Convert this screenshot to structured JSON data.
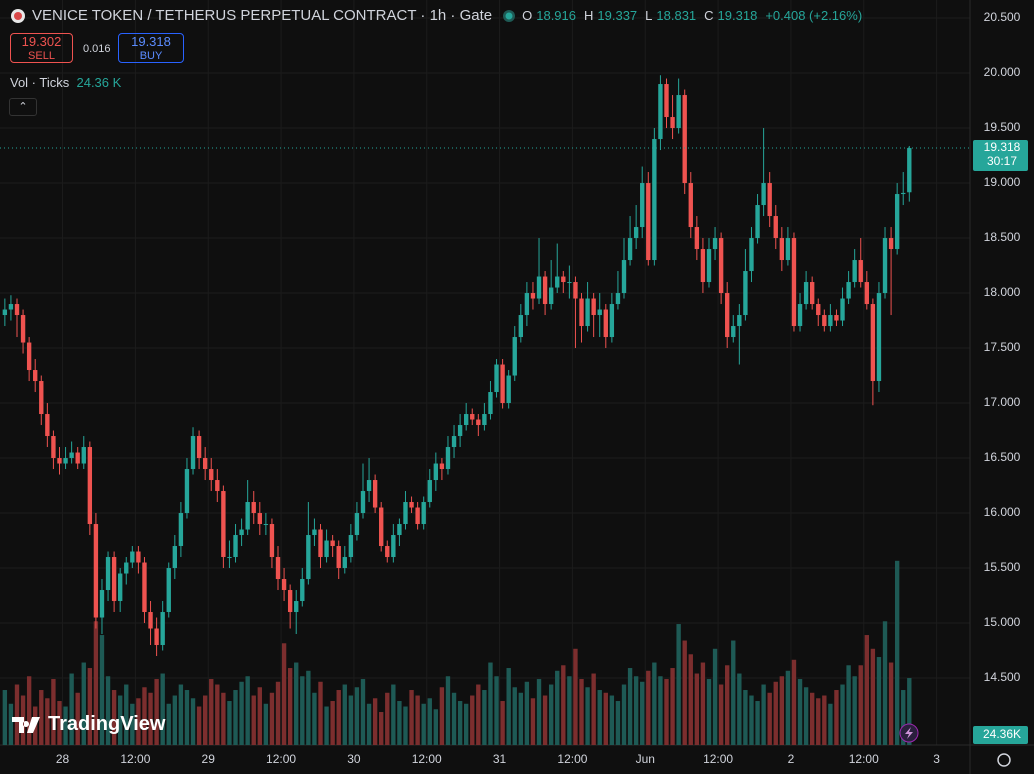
{
  "chart_data": {
    "type": "candlestick",
    "title": "VENICE TOKEN / TETHERUS PERPETUAL CONTRACT · 1h · Gate",
    "legend_items": [
      {
        "label": "O",
        "value": 18.916
      },
      {
        "label": "H",
        "value": 19.337
      },
      {
        "label": "L",
        "value": 18.831
      },
      {
        "label": "C",
        "value": 19.318
      }
    ],
    "change": "+0.408 (+2.16%)",
    "sell": {
      "price": 19.302,
      "label": "SELL"
    },
    "spread": 0.016,
    "buy": {
      "price": 19.318,
      "label": "BUY"
    },
    "volume_legend": {
      "label": "Vol · Ticks",
      "value": "24.36 K"
    },
    "last_price": 19.318,
    "countdown": "30:17",
    "volume_label": "24.36K",
    "brand": "TradingView",
    "colors": {
      "up": "#26a69a",
      "down": "#ef5350",
      "up_volume": "#1e5a55",
      "down_volume": "#7c2e2e"
    },
    "grid": true,
    "xlim": [
      -0.8,
      159
    ],
    "ylim": [
      13.891,
      20.664
    ],
    "vlim": [
      0,
      271
    ],
    "yticks": [
      {
        "value": 14.5,
        "label": "14.500"
      },
      {
        "value": 15,
        "label": "15.000"
      },
      {
        "value": 15.5,
        "label": "15.500"
      },
      {
        "value": 16,
        "label": "16.000"
      },
      {
        "value": 16.5,
        "label": "16.500"
      },
      {
        "value": 17,
        "label": "17.000"
      },
      {
        "value": 17.5,
        "label": "17.500"
      },
      {
        "value": 18,
        "label": "18.000"
      },
      {
        "value": 18.5,
        "label": "18.500"
      },
      {
        "value": 19,
        "label": "19.000"
      },
      {
        "value": 19.5,
        "label": "19.500"
      },
      {
        "value": 20,
        "label": "20.000"
      },
      {
        "value": 20.5,
        "label": "20.500"
      }
    ],
    "xticks": [
      {
        "value": 9.5,
        "label": "28"
      },
      {
        "value": 21.5,
        "label": "12:00"
      },
      {
        "value": 33.5,
        "label": "29"
      },
      {
        "value": 45.5,
        "label": "12:00"
      },
      {
        "value": 57.5,
        "label": "30"
      },
      {
        "value": 69.5,
        "label": "12:00"
      },
      {
        "value": 81.5,
        "label": "31"
      },
      {
        "value": 93.5,
        "label": "12:00"
      },
      {
        "value": 105.5,
        "label": "Jun"
      },
      {
        "value": 117.5,
        "label": "12:00"
      },
      {
        "value": 129.5,
        "label": "2"
      },
      {
        "value": 141.5,
        "label": "12:00"
      },
      {
        "value": 153.5,
        "label": "3"
      }
    ],
    "candles": [
      [
        17.8,
        17.95,
        17.7,
        17.85
      ],
      [
        17.85,
        17.98,
        17.75,
        17.9
      ],
      [
        17.9,
        17.95,
        17.6,
        17.8
      ],
      [
        17.8,
        17.85,
        17.45,
        17.55
      ],
      [
        17.55,
        17.6,
        17.2,
        17.3
      ],
      [
        17.3,
        17.4,
        17.1,
        17.2
      ],
      [
        17.2,
        17.25,
        16.8,
        16.9
      ],
      [
        16.9,
        17.0,
        16.6,
        16.7
      ],
      [
        16.7,
        16.75,
        16.4,
        16.5
      ],
      [
        16.5,
        16.6,
        16.35,
        16.45
      ],
      [
        16.45,
        16.6,
        16.4,
        16.5
      ],
      [
        16.5,
        16.65,
        16.45,
        16.55
      ],
      [
        16.55,
        16.6,
        16.4,
        16.45
      ],
      [
        16.45,
        16.7,
        16.4,
        16.6
      ],
      [
        16.6,
        16.65,
        15.8,
        15.9
      ],
      [
        15.9,
        16.0,
        14.95,
        15.05
      ],
      [
        15.05,
        15.4,
        14.9,
        15.3
      ],
      [
        15.3,
        15.65,
        15.2,
        15.6
      ],
      [
        15.6,
        15.65,
        15.1,
        15.2
      ],
      [
        15.2,
        15.5,
        15.1,
        15.45
      ],
      [
        15.45,
        15.6,
        15.35,
        15.55
      ],
      [
        15.55,
        15.7,
        15.5,
        15.65
      ],
      [
        15.65,
        15.7,
        15.45,
        15.55
      ],
      [
        15.55,
        15.6,
        15.0,
        15.1
      ],
      [
        15.1,
        15.2,
        14.8,
        14.95
      ],
      [
        14.95,
        15.05,
        14.7,
        14.8
      ],
      [
        14.8,
        15.2,
        14.75,
        15.1
      ],
      [
        15.1,
        15.55,
        15.05,
        15.5
      ],
      [
        15.5,
        15.8,
        15.4,
        15.7
      ],
      [
        15.7,
        16.1,
        15.6,
        16.0
      ],
      [
        16.0,
        16.5,
        15.95,
        16.4
      ],
      [
        16.4,
        16.78,
        16.35,
        16.7
      ],
      [
        16.7,
        16.75,
        16.4,
        16.5
      ],
      [
        16.5,
        16.6,
        16.3,
        16.4
      ],
      [
        16.4,
        16.5,
        16.2,
        16.3
      ],
      [
        16.3,
        16.4,
        16.1,
        16.2
      ],
      [
        16.2,
        16.25,
        15.5,
        15.6
      ],
      [
        15.6,
        15.75,
        15.5,
        15.6
      ],
      [
        15.6,
        15.9,
        15.55,
        15.8
      ],
      [
        15.8,
        15.95,
        15.7,
        15.85
      ],
      [
        15.85,
        16.3,
        15.8,
        16.1
      ],
      [
        16.1,
        16.2,
        15.9,
        16.0
      ],
      [
        16.0,
        16.1,
        15.8,
        15.9
      ],
      [
        15.9,
        16.0,
        15.8,
        15.9
      ],
      [
        15.9,
        15.95,
        15.5,
        15.6
      ],
      [
        15.6,
        15.7,
        15.3,
        15.4
      ],
      [
        15.4,
        15.5,
        15.2,
        15.3
      ],
      [
        15.3,
        15.35,
        14.95,
        15.1
      ],
      [
        15.1,
        15.3,
        14.9,
        15.2
      ],
      [
        15.2,
        15.5,
        15.15,
        15.4
      ],
      [
        15.4,
        16.1,
        15.35,
        15.8
      ],
      [
        15.8,
        15.95,
        15.7,
        15.85
      ],
      [
        15.85,
        15.9,
        15.5,
        15.6
      ],
      [
        15.6,
        15.85,
        15.55,
        15.75
      ],
      [
        15.75,
        15.8,
        15.6,
        15.7
      ],
      [
        15.7,
        15.75,
        15.4,
        15.5
      ],
      [
        15.5,
        15.7,
        15.45,
        15.6
      ],
      [
        15.6,
        15.9,
        15.55,
        15.8
      ],
      [
        15.8,
        16.1,
        15.75,
        16.0
      ],
      [
        16.0,
        16.45,
        15.95,
        16.2
      ],
      [
        16.2,
        16.5,
        16.1,
        16.3
      ],
      [
        16.3,
        16.35,
        16.0,
        16.05
      ],
      [
        16.05,
        16.1,
        15.65,
        15.7
      ],
      [
        15.7,
        15.75,
        15.55,
        15.6
      ],
      [
        15.6,
        15.9,
        15.55,
        15.8
      ],
      [
        15.8,
        15.95,
        15.7,
        15.9
      ],
      [
        15.9,
        16.2,
        15.85,
        16.1
      ],
      [
        16.1,
        16.15,
        16.0,
        16.05
      ],
      [
        16.05,
        16.1,
        15.85,
        15.9
      ],
      [
        15.9,
        16.15,
        15.85,
        16.1
      ],
      [
        16.1,
        16.4,
        16.05,
        16.3
      ],
      [
        16.3,
        16.55,
        16.2,
        16.45
      ],
      [
        16.45,
        16.5,
        16.3,
        16.4
      ],
      [
        16.4,
        16.7,
        16.35,
        16.6
      ],
      [
        16.6,
        16.8,
        16.5,
        16.7
      ],
      [
        16.7,
        16.9,
        16.6,
        16.8
      ],
      [
        16.8,
        17.0,
        16.75,
        16.9
      ],
      [
        16.9,
        16.95,
        16.8,
        16.85
      ],
      [
        16.85,
        16.9,
        16.7,
        16.8
      ],
      [
        16.8,
        17.0,
        16.75,
        16.9
      ],
      [
        16.9,
        17.2,
        16.85,
        17.1
      ],
      [
        17.1,
        17.4,
        17.05,
        17.35
      ],
      [
        17.35,
        17.4,
        16.95,
        17.0
      ],
      [
        17.0,
        17.3,
        16.95,
        17.25
      ],
      [
        17.25,
        17.7,
        17.2,
        17.6
      ],
      [
        17.6,
        17.9,
        17.55,
        17.8
      ],
      [
        17.8,
        18.1,
        17.7,
        18.0
      ],
      [
        18.0,
        18.1,
        17.85,
        17.95
      ],
      [
        17.95,
        18.5,
        17.9,
        18.15
      ],
      [
        18.15,
        18.2,
        17.8,
        17.9
      ],
      [
        17.9,
        18.3,
        17.85,
        18.05
      ],
      [
        18.05,
        18.45,
        18.0,
        18.15
      ],
      [
        18.15,
        18.2,
        18.0,
        18.1
      ],
      [
        18.1,
        18.25,
        17.95,
        18.1
      ],
      [
        18.1,
        18.15,
        17.5,
        17.95
      ],
      [
        17.95,
        18.0,
        17.55,
        17.7
      ],
      [
        17.7,
        18.1,
        17.65,
        17.95
      ],
      [
        17.95,
        18.0,
        17.6,
        17.8
      ],
      [
        17.8,
        18.0,
        17.6,
        17.85
      ],
      [
        17.85,
        17.9,
        17.5,
        17.6
      ],
      [
        17.6,
        18.0,
        17.55,
        17.9
      ],
      [
        17.9,
        18.2,
        17.85,
        18.0
      ],
      [
        18.0,
        18.5,
        17.95,
        18.3
      ],
      [
        18.3,
        18.7,
        18.25,
        18.5
      ],
      [
        18.5,
        18.8,
        18.4,
        18.6
      ],
      [
        18.6,
        19.15,
        18.5,
        19.0
      ],
      [
        19.0,
        19.1,
        18.25,
        18.3
      ],
      [
        18.3,
        19.5,
        18.25,
        19.4
      ],
      [
        19.4,
        19.98,
        19.3,
        19.9
      ],
      [
        19.9,
        19.95,
        19.5,
        19.6
      ],
      [
        19.6,
        19.8,
        19.4,
        19.5
      ],
      [
        19.5,
        19.95,
        19.45,
        19.8
      ],
      [
        19.8,
        19.85,
        18.9,
        19.0
      ],
      [
        19.0,
        19.1,
        18.5,
        18.6
      ],
      [
        18.6,
        18.7,
        18.3,
        18.4
      ],
      [
        18.4,
        18.5,
        18.0,
        18.1
      ],
      [
        18.1,
        18.5,
        18.05,
        18.4
      ],
      [
        18.4,
        18.6,
        18.3,
        18.5
      ],
      [
        18.5,
        18.55,
        17.9,
        18.0
      ],
      [
        18.0,
        18.1,
        17.5,
        17.6
      ],
      [
        17.6,
        17.8,
        17.55,
        17.7
      ],
      [
        17.7,
        17.9,
        17.35,
        17.8
      ],
      [
        17.8,
        18.4,
        17.75,
        18.2
      ],
      [
        18.2,
        18.6,
        18.1,
        18.5
      ],
      [
        18.5,
        18.9,
        18.45,
        18.8
      ],
      [
        18.8,
        19.5,
        18.7,
        19.0
      ],
      [
        19.0,
        19.1,
        18.6,
        18.7
      ],
      [
        18.7,
        18.8,
        18.4,
        18.5
      ],
      [
        18.5,
        18.6,
        18.2,
        18.3
      ],
      [
        18.3,
        18.6,
        18.25,
        18.5
      ],
      [
        18.5,
        18.55,
        17.65,
        17.7
      ],
      [
        17.7,
        18.0,
        17.65,
        17.9
      ],
      [
        17.9,
        18.2,
        17.85,
        18.1
      ],
      [
        18.1,
        18.15,
        17.85,
        17.9
      ],
      [
        17.9,
        17.95,
        17.7,
        17.8
      ],
      [
        17.8,
        17.85,
        17.65,
        17.7
      ],
      [
        17.7,
        17.9,
        17.65,
        17.8
      ],
      [
        17.8,
        17.85,
        17.7,
        17.75
      ],
      [
        17.75,
        18.05,
        17.7,
        17.95
      ],
      [
        17.95,
        18.2,
        17.9,
        18.1
      ],
      [
        18.1,
        18.4,
        18.05,
        18.3
      ],
      [
        18.3,
        18.5,
        18.05,
        18.1
      ],
      [
        18.1,
        18.2,
        17.85,
        17.9
      ],
      [
        17.9,
        17.95,
        16.98,
        17.2
      ],
      [
        17.2,
        18.1,
        17.1,
        18.0
      ],
      [
        18.0,
        18.6,
        17.95,
        18.5
      ],
      [
        18.5,
        18.6,
        17.8,
        18.4
      ],
      [
        18.4,
        19.0,
        18.35,
        18.9
      ],
      [
        18.9,
        19.1,
        18.8,
        18.91
      ],
      [
        18.916,
        19.337,
        18.831,
        19.318
      ]
    ],
    "volumes": [
      20,
      15,
      22,
      18,
      25,
      14,
      20,
      17,
      24,
      16,
      14,
      26,
      19,
      30,
      28,
      45,
      40,
      25,
      20,
      18,
      22,
      15,
      17,
      21,
      19,
      24,
      26,
      15,
      18,
      22,
      20,
      17,
      14,
      18,
      24,
      22,
      19,
      16,
      20,
      23,
      25,
      18,
      21,
      15,
      19,
      23,
      37,
      28,
      30,
      25,
      27,
      19,
      23,
      14,
      16,
      20,
      22,
      18,
      21,
      24,
      15,
      17,
      12,
      19,
      22,
      16,
      14,
      20,
      18,
      15,
      17,
      13,
      21,
      25,
      19,
      16,
      15,
      18,
      22,
      20,
      30,
      25,
      16,
      28,
      21,
      19,
      23,
      17,
      24,
      18,
      22,
      27,
      29,
      25,
      35,
      24,
      21,
      26,
      20,
      19,
      18,
      16,
      22,
      28,
      25,
      23,
      27,
      30,
      25,
      24,
      28,
      44,
      38,
      33,
      26,
      30,
      24,
      35,
      22,
      29,
      38,
      26,
      20,
      18,
      16,
      22,
      19,
      23,
      25,
      27,
      31,
      24,
      21,
      19,
      17,
      18,
      15,
      20,
      22,
      29,
      25,
      29,
      40,
      35,
      32,
      45,
      30,
      67,
      20,
      24.36
    ]
  }
}
